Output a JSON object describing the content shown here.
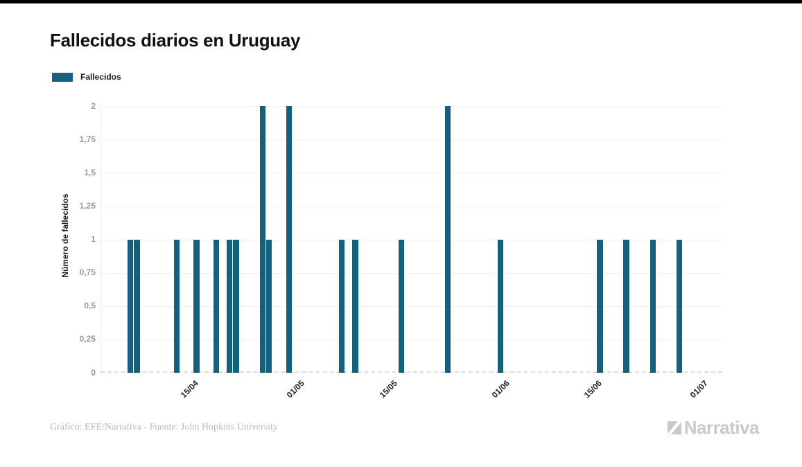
{
  "header": {
    "title": "Fallecidos diarios en Uruguay"
  },
  "legend": {
    "label": "Fallecidos",
    "swatch_color": "#14607f"
  },
  "chart_data": {
    "type": "bar",
    "title": "Fallecidos diarios en Uruguay",
    "series_name": "Fallecidos",
    "x": [
      "07/04",
      "08/04",
      "14/04",
      "17/04",
      "20/04",
      "22/04",
      "23/04",
      "27/04",
      "28/04",
      "01/05",
      "09/05",
      "11/05",
      "18/05",
      "25/05",
      "02/06",
      "17/06",
      "21/06",
      "25/06",
      "29/06"
    ],
    "values": [
      1,
      1,
      1,
      1,
      1,
      1,
      1,
      2,
      1,
      2,
      1,
      1,
      1,
      2,
      1,
      1,
      1,
      1,
      1
    ],
    "xlabel": "",
    "ylabel": "Número de fallecidos",
    "ylim": [
      0,
      2
    ],
    "ytick_step": 0.25,
    "ytick_labels": [
      "0",
      "0,25",
      "0,5",
      "0,75",
      "1",
      "1,25",
      "1,5",
      "1,75",
      "2"
    ],
    "xtick_labels": [
      "15/04",
      "01/05",
      "15/05",
      "01/06",
      "15/06",
      "01/07"
    ],
    "x_domain": [
      "03/04",
      "05/07"
    ],
    "bar_color": "#14607f",
    "grid": true,
    "legend_position": "top-left"
  },
  "footer": {
    "credit": "Gráfico: EFE/Narrativa - Fuente: John Hopkins University",
    "brand": "Narrativa"
  }
}
